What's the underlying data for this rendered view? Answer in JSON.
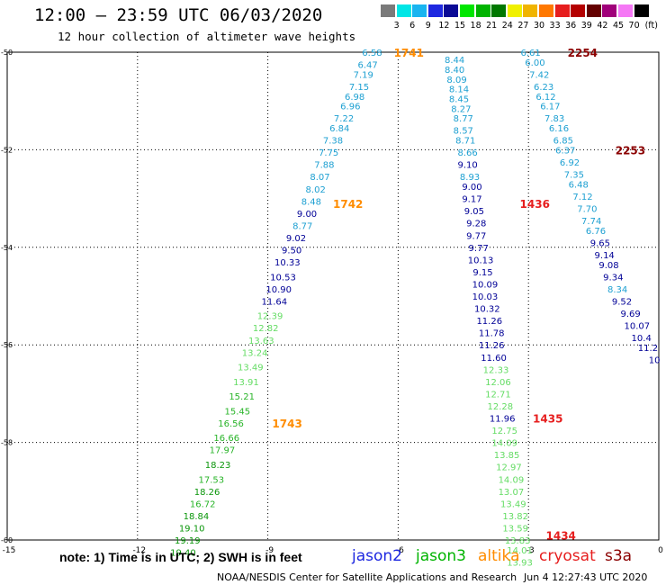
{
  "title": "12:00 – 23:59 UTC 06/03/2020",
  "subtitle": "12 hour collection of altimeter wave heights",
  "color_scale": {
    "labels": [
      "3",
      "6",
      "9",
      "12",
      "15",
      "18",
      "21",
      "24",
      "27",
      "30",
      "33",
      "36",
      "39",
      "42",
      "45",
      "70"
    ],
    "colors": [
      "#7a7a7a",
      "#00e6e6",
      "#18b4f0",
      "#1e28e0",
      "#0a0a96",
      "#00e600",
      "#00b400",
      "#007800",
      "#f0f000",
      "#f0b400",
      "#ff7800",
      "#e61e1e",
      "#b40000",
      "#640000",
      "#a0007a",
      "#f578f5",
      "#000000"
    ],
    "units": "(ft)"
  },
  "axes": {
    "x_ticks": [
      "-15",
      "-12",
      "-9",
      "-6",
      "-3",
      "0"
    ],
    "y_ticks": [
      "-50",
      "-52",
      "-54",
      "-56",
      "-58",
      "-60"
    ]
  },
  "chart_data": {
    "type": "scatter",
    "x_range": [
      -15,
      0
    ],
    "y_range": [
      -60,
      -50
    ],
    "x_ticks": [
      -15,
      -12,
      -9,
      -6,
      -3,
      0
    ],
    "y_ticks": [
      -50,
      -52,
      -54,
      -56,
      -58,
      -60
    ],
    "grid": true,
    "tracks": [
      {
        "satellite": "altika",
        "color": "#ff8c00",
        "times": [
          {
            "label": "1741",
            "lon": -6.1,
            "lat": -50.0
          },
          {
            "label": "1742",
            "lon": -7.5,
            "lat": -53.1
          },
          {
            "label": "1743",
            "lon": -8.9,
            "lat": -57.6
          }
        ],
        "points": [
          {
            "v": "6.58",
            "lon": -6.6,
            "lat": -50.0
          },
          {
            "v": "6.47",
            "lon": -6.7,
            "lat": -50.25
          },
          {
            "v": "7.19",
            "lon": -6.8,
            "lat": -50.45
          },
          {
            "v": "7.15",
            "lon": -6.9,
            "lat": -50.7
          },
          {
            "v": "6.98",
            "lon": -7.0,
            "lat": -50.9
          },
          {
            "v": "6.96",
            "lon": -7.1,
            "lat": -51.1
          },
          {
            "v": "7.22",
            "lon": -7.25,
            "lat": -51.35
          },
          {
            "v": "6.84",
            "lon": -7.35,
            "lat": -51.55
          },
          {
            "v": "7.38",
            "lon": -7.5,
            "lat": -51.8
          },
          {
            "v": "7.75",
            "lon": -7.6,
            "lat": -52.05
          },
          {
            "v": "7.88",
            "lon": -7.7,
            "lat": -52.3
          },
          {
            "v": "8.07",
            "lon": -7.8,
            "lat": -52.55
          },
          {
            "v": "8.02",
            "lon": -7.9,
            "lat": -52.8
          },
          {
            "v": "8.48",
            "lon": -8.0,
            "lat": -53.05
          },
          {
            "v": "9.00",
            "lon": -8.1,
            "lat": -53.3
          },
          {
            "v": "8.77",
            "lon": -8.2,
            "lat": -53.55
          },
          {
            "v": "9.02",
            "lon": -8.35,
            "lat": -53.8
          },
          {
            "v": "9.50",
            "lon": -8.45,
            "lat": -54.05
          },
          {
            "v": "10.33",
            "lon": -8.55,
            "lat": -54.3
          },
          {
            "v": "10.53",
            "lon": -8.65,
            "lat": -54.6
          },
          {
            "v": "10.90",
            "lon": -8.75,
            "lat": -54.85
          },
          {
            "v": "11.64",
            "lon": -8.85,
            "lat": -55.1
          },
          {
            "v": "12.39",
            "lon": -8.95,
            "lat": -55.4
          },
          {
            "v": "12.82",
            "lon": -9.05,
            "lat": -55.65
          },
          {
            "v": "13.63",
            "lon": -9.15,
            "lat": -55.9
          },
          {
            "v": "13.24",
            "lon": -9.3,
            "lat": -56.15
          },
          {
            "v": "13.49",
            "lon": -9.4,
            "lat": -56.45
          },
          {
            "v": "13.91",
            "lon": -9.5,
            "lat": -56.75
          },
          {
            "v": "15.21",
            "lon": -9.6,
            "lat": -57.05
          },
          {
            "v": "15.45",
            "lon": -9.7,
            "lat": -57.35
          },
          {
            "v": "16.56",
            "lon": -9.85,
            "lat": -57.6
          },
          {
            "v": "16.66",
            "lon": -9.95,
            "lat": -57.9
          },
          {
            "v": "17.97",
            "lon": -10.05,
            "lat": -58.15
          },
          {
            "v": "18.23",
            "lon": -10.15,
            "lat": -58.45
          },
          {
            "v": "17.53",
            "lon": -10.3,
            "lat": -58.75
          },
          {
            "v": "18.26",
            "lon": -10.4,
            "lat": -59.0
          },
          {
            "v": "16.72",
            "lon": -10.5,
            "lat": -59.25
          },
          {
            "v": "18.84",
            "lon": -10.65,
            "lat": -59.5
          },
          {
            "v": "19.10",
            "lon": -10.75,
            "lat": -59.75
          },
          {
            "v": "19.19",
            "lon": -10.85,
            "lat": -60.0
          },
          {
            "v": "19.40",
            "lon": -10.95,
            "lat": -60.25
          }
        ]
      },
      {
        "satellite": "cryosat",
        "color": "#e61e1e",
        "times": [
          {
            "label": "1436",
            "lon": -3.2,
            "lat": -53.1
          },
          {
            "label": "1435",
            "lon": -2.9,
            "lat": -57.5
          },
          {
            "label": "1434",
            "lon": -2.6,
            "lat": -59.9
          }
        ],
        "points": [
          {
            "v": "8.44",
            "lon": -4.7,
            "lat": -50.15
          },
          {
            "v": "8.40",
            "lon": -4.7,
            "lat": -50.35
          },
          {
            "v": "8.09",
            "lon": -4.65,
            "lat": -50.55
          },
          {
            "v": "8.14",
            "lon": -4.6,
            "lat": -50.75
          },
          {
            "v": "8.45",
            "lon": -4.6,
            "lat": -50.95
          },
          {
            "v": "8.27",
            "lon": -4.55,
            "lat": -51.15
          },
          {
            "v": "8.77",
            "lon": -4.5,
            "lat": -51.35
          },
          {
            "v": "8.57",
            "lon": -4.5,
            "lat": -51.6
          },
          {
            "v": "8.71",
            "lon": -4.45,
            "lat": -51.8
          },
          {
            "v": "8.66",
            "lon": -4.4,
            "lat": -52.05
          },
          {
            "v": "9.10",
            "lon": -4.4,
            "lat": -52.3
          },
          {
            "v": "8.93",
            "lon": -4.35,
            "lat": -52.55
          },
          {
            "v": "9.00",
            "lon": -4.3,
            "lat": -52.75
          },
          {
            "v": "9.17",
            "lon": -4.3,
            "lat": -53.0
          },
          {
            "v": "9.05",
            "lon": -4.25,
            "lat": -53.25
          },
          {
            "v": "9.28",
            "lon": -4.2,
            "lat": -53.5
          },
          {
            "v": "9.77",
            "lon": -4.2,
            "lat": -53.75
          },
          {
            "v": "9.77",
            "lon": -4.15,
            "lat": -54.0
          },
          {
            "v": "10.13",
            "lon": -4.1,
            "lat": -54.25
          },
          {
            "v": "9.15",
            "lon": -4.05,
            "lat": -54.5
          },
          {
            "v": "10.09",
            "lon": -4.0,
            "lat": -54.75
          },
          {
            "v": "10.03",
            "lon": -4.0,
            "lat": -55.0
          },
          {
            "v": "10.32",
            "lon": -3.95,
            "lat": -55.25
          },
          {
            "v": "11.26",
            "lon": -3.9,
            "lat": -55.5
          },
          {
            "v": "11.78",
            "lon": -3.85,
            "lat": -55.75
          },
          {
            "v": "11.26",
            "lon": -3.85,
            "lat": -56.0
          },
          {
            "v": "11.60",
            "lon": -3.8,
            "lat": -56.25
          },
          {
            "v": "12.33",
            "lon": -3.75,
            "lat": -56.5
          },
          {
            "v": "12.06",
            "lon": -3.7,
            "lat": -56.75
          },
          {
            "v": "12.71",
            "lon": -3.7,
            "lat": -57.0
          },
          {
            "v": "12.28",
            "lon": -3.65,
            "lat": -57.25
          },
          {
            "v": "11.96",
            "lon": -3.6,
            "lat": -57.5
          },
          {
            "v": "12.75",
            "lon": -3.55,
            "lat": -57.75
          },
          {
            "v": "14.09",
            "lon": -3.55,
            "lat": -58.0
          },
          {
            "v": "13.85",
            "lon": -3.5,
            "lat": -58.25
          },
          {
            "v": "12.97",
            "lon": -3.45,
            "lat": -58.5
          },
          {
            "v": "14.09",
            "lon": -3.4,
            "lat": -58.75
          },
          {
            "v": "13.07",
            "lon": -3.4,
            "lat": -59.0
          },
          {
            "v": "13.49",
            "lon": -3.35,
            "lat": -59.25
          },
          {
            "v": "13.82",
            "lon": -3.3,
            "lat": -59.5
          },
          {
            "v": "13.59",
            "lon": -3.3,
            "lat": -59.75
          },
          {
            "v": "13.83",
            "lon": -3.25,
            "lat": -60.0
          },
          {
            "v": "14.01",
            "lon": -3.2,
            "lat": -60.2
          },
          {
            "v": "13.93",
            "lon": -3.2,
            "lat": -60.45
          }
        ]
      },
      {
        "satellite": "s3a",
        "color": "#8b0000",
        "times": [
          {
            "label": "2254",
            "lon": -2.1,
            "lat": -50.0
          },
          {
            "label": "2253",
            "lon": -1.0,
            "lat": -52.0
          }
        ],
        "points": [
          {
            "v": "6.61",
            "lon": -2.95,
            "lat": -50.0
          },
          {
            "v": "6.00",
            "lon": -2.85,
            "lat": -50.2
          },
          {
            "v": "7.42",
            "lon": -2.75,
            "lat": -50.45
          },
          {
            "v": "6.23",
            "lon": -2.65,
            "lat": -50.7
          },
          {
            "v": "6.12",
            "lon": -2.6,
            "lat": -50.9
          },
          {
            "v": "6.17",
            "lon": -2.5,
            "lat": -51.1
          },
          {
            "v": "7.83",
            "lon": -2.4,
            "lat": -51.35
          },
          {
            "v": "6.16",
            "lon": -2.3,
            "lat": -51.55
          },
          {
            "v": "6.85",
            "lon": -2.2,
            "lat": -51.8
          },
          {
            "v": "6.37",
            "lon": -2.15,
            "lat": -52.0
          },
          {
            "v": "6.92",
            "lon": -2.05,
            "lat": -52.25
          },
          {
            "v": "7.35",
            "lon": -1.95,
            "lat": -52.5
          },
          {
            "v": "6.48",
            "lon": -1.85,
            "lat": -52.7
          },
          {
            "v": "7.12",
            "lon": -1.75,
            "lat": -52.95
          },
          {
            "v": "7.70",
            "lon": -1.65,
            "lat": -53.2
          },
          {
            "v": "7.74",
            "lon": -1.55,
            "lat": -53.45
          },
          {
            "v": "6.76",
            "lon": -1.45,
            "lat": -53.65
          },
          {
            "v": "9.65",
            "lon": -1.35,
            "lat": -53.9
          },
          {
            "v": "9.14",
            "lon": -1.25,
            "lat": -54.15
          },
          {
            "v": "9.08",
            "lon": -1.15,
            "lat": -54.35
          },
          {
            "v": "9.34",
            "lon": -1.05,
            "lat": -54.6
          },
          {
            "v": "8.34",
            "lon": -0.95,
            "lat": -54.85
          },
          {
            "v": "9.52",
            "lon": -0.85,
            "lat": -55.1
          },
          {
            "v": "9.69",
            "lon": -0.65,
            "lat": -55.35
          },
          {
            "v": "10.07",
            "lon": -0.5,
            "lat": -55.6
          },
          {
            "v": "10.4",
            "lon": -0.4,
            "lat": -55.85
          },
          {
            "v": "11.2",
            "lon": -0.25,
            "lat": -56.05
          },
          {
            "v": "10",
            "lon": -0.1,
            "lat": -56.3
          }
        ]
      }
    ]
  },
  "note": "note: 1) Time is in UTC; 2) SWH is in feet",
  "legend": [
    {
      "name": "jason2",
      "color": "#1e28e0"
    },
    {
      "name": "jason3",
      "color": "#00b400"
    },
    {
      "name": "altika",
      "color": "#ff8c00"
    },
    {
      "name": "cryosat",
      "color": "#e61e1e"
    },
    {
      "name": "s3a",
      "color": "#8b0000"
    }
  ],
  "footer": {
    "center": "NOAA/NESDIS Center for Satellite Applications and Research",
    "time": "Jun  4 12:27:43 UTC 2020"
  }
}
